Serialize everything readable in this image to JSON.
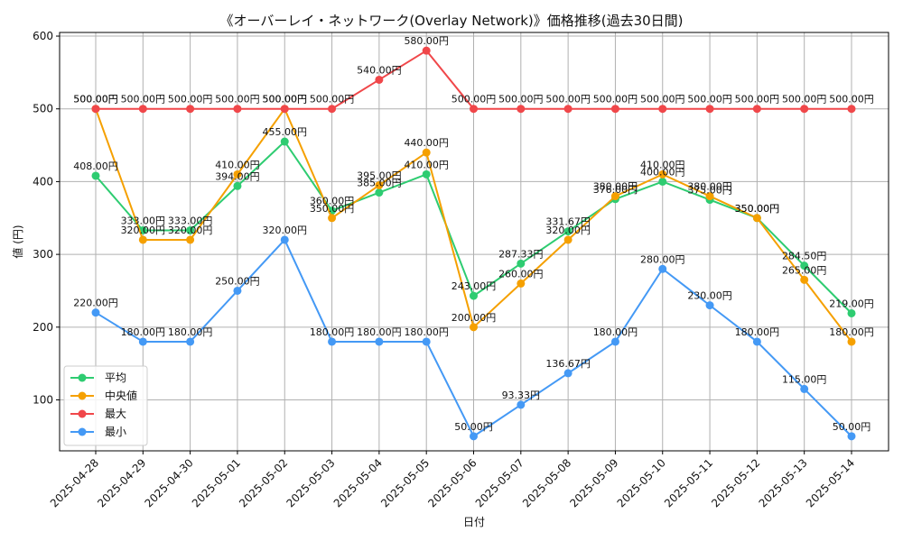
{
  "chart_data": {
    "type": "line",
    "title": "《オーバーレイ・ネットワーク(Overlay Network)》価格推移(過去30日間)",
    "xlabel": "日付",
    "ylabel": "値 (円)",
    "ylim": [
      30,
      605
    ],
    "yticks": [
      100,
      200,
      300,
      400,
      500,
      600
    ],
    "grid": true,
    "legend_position": "bottom-left",
    "value_suffix": "円",
    "categories": [
      "2025-04-28",
      "2025-04-29",
      "2025-04-30",
      "2025-05-01",
      "2025-05-02",
      "2025-05-03",
      "2025-05-04",
      "2025-05-05",
      "2025-05-06",
      "2025-05-07",
      "2025-05-08",
      "2025-05-09",
      "2025-05-10",
      "2025-05-11",
      "2025-05-12",
      "2025-05-13",
      "2025-05-14"
    ],
    "series": [
      {
        "name": "平均",
        "color": "#2ecc71",
        "values": [
          408.0,
          333.0,
          333.0,
          394.0,
          455.0,
          360.0,
          385.0,
          410.0,
          243.0,
          287.33,
          331.67,
          376.0,
          400.0,
          375.0,
          350.0,
          284.5,
          219.0
        ]
      },
      {
        "name": "中央値",
        "color": "#f5a000",
        "values": [
          500.0,
          320.0,
          320.0,
          410.0,
          500.0,
          350.0,
          395.0,
          440.0,
          200.0,
          260.0,
          320.0,
          380.0,
          410.0,
          380.0,
          350.0,
          265.0,
          180.0
        ]
      },
      {
        "name": "最大",
        "color": "#f0474a",
        "values": [
          500.0,
          500.0,
          500.0,
          500.0,
          500.0,
          500.0,
          540.0,
          580.0,
          500.0,
          500.0,
          500.0,
          500.0,
          500.0,
          500.0,
          500.0,
          500.0,
          500.0
        ]
      },
      {
        "name": "最小",
        "color": "#4499f5",
        "values": [
          220.0,
          180.0,
          180.0,
          250.0,
          320.0,
          180.0,
          180.0,
          180.0,
          50.0,
          93.33,
          136.67,
          180.0,
          280.0,
          230.0,
          180.0,
          115.0,
          50.0
        ]
      }
    ]
  }
}
